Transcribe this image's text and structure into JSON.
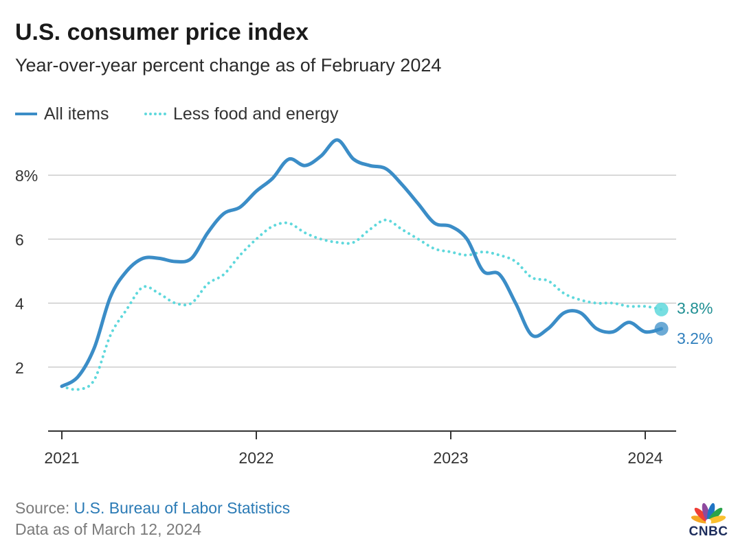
{
  "header": {
    "title": "U.S. consumer price index",
    "subtitle": "Year-over-year percent change as of February 2024"
  },
  "legend": {
    "all_items": "All items",
    "core": "Less food and energy"
  },
  "footer": {
    "source_prefix": "Source: ",
    "source_name": "U.S. Bureau of Labor Statistics",
    "data_note": "Data as of March 12, 2024"
  },
  "logo": {
    "text": "CNBC",
    "icon": "cnbc-peacock-logo"
  },
  "colors": {
    "all_items": "#3b8dc7",
    "core": "#5fd8dc",
    "all_items_label": "#2f7fbd",
    "core_label": "#1f8f93",
    "grid": "#cccccc",
    "axis": "#333333"
  },
  "chart_data": {
    "type": "line",
    "title": "U.S. consumer price index",
    "subtitle": "Year-over-year percent change as of February 2024",
    "xlabel": "",
    "ylabel": "",
    "x": [
      "2021-01",
      "2021-02",
      "2021-03",
      "2021-04",
      "2021-05",
      "2021-06",
      "2021-07",
      "2021-08",
      "2021-09",
      "2021-10",
      "2021-11",
      "2021-12",
      "2022-01",
      "2022-02",
      "2022-03",
      "2022-04",
      "2022-05",
      "2022-06",
      "2022-07",
      "2022-08",
      "2022-09",
      "2022-10",
      "2022-11",
      "2022-12",
      "2023-01",
      "2023-02",
      "2023-03",
      "2023-04",
      "2023-05",
      "2023-06",
      "2023-07",
      "2023-08",
      "2023-09",
      "2023-10",
      "2023-11",
      "2023-12",
      "2024-01",
      "2024-02"
    ],
    "x_ticks": [
      "2021",
      "2022",
      "2023",
      "2024"
    ],
    "y_ticks": [
      "2",
      "4",
      "6",
      "8%"
    ],
    "y_tick_values": [
      2,
      4,
      6,
      8
    ],
    "ylim": [
      0,
      9.5
    ],
    "grid": true,
    "legend_position": "top-left",
    "series": [
      {
        "name": "All items",
        "style": "solid",
        "values": [
          1.4,
          1.7,
          2.6,
          4.2,
          5.0,
          5.4,
          5.4,
          5.3,
          5.4,
          6.2,
          6.8,
          7.0,
          7.5,
          7.9,
          8.5,
          8.3,
          8.6,
          9.1,
          8.5,
          8.3,
          8.2,
          7.7,
          7.1,
          6.5,
          6.4,
          6.0,
          5.0,
          4.9,
          4.0,
          3.0,
          3.2,
          3.7,
          3.7,
          3.2,
          3.1,
          3.4,
          3.1,
          3.2
        ],
        "end_label": "3.2%"
      },
      {
        "name": "Less food and energy",
        "style": "dotted",
        "values": [
          1.4,
          1.3,
          1.6,
          3.0,
          3.8,
          4.5,
          4.3,
          4.0,
          4.0,
          4.6,
          4.9,
          5.5,
          6.0,
          6.4,
          6.5,
          6.2,
          6.0,
          5.9,
          5.9,
          6.3,
          6.6,
          6.3,
          6.0,
          5.7,
          5.6,
          5.5,
          5.6,
          5.5,
          5.3,
          4.8,
          4.7,
          4.3,
          4.1,
          4.0,
          4.0,
          3.9,
          3.9,
          3.8
        ],
        "end_label": "3.8%"
      }
    ]
  }
}
